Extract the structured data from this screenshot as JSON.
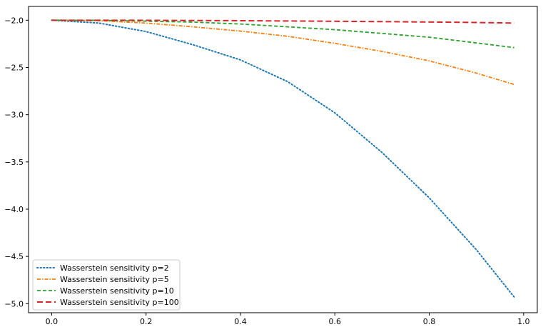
{
  "chart_data": {
    "type": "line",
    "title": "",
    "xlabel": "",
    "ylabel": "",
    "xlim": [
      -0.049,
      1.029
    ],
    "ylim": [
      -5.096,
      -1.854
    ],
    "xticks": [
      0.0,
      0.2,
      0.4,
      0.6,
      0.8,
      1.0
    ],
    "xtick_labels": [
      "0.0",
      "0.2",
      "0.4",
      "0.6",
      "0.8",
      "1.0"
    ],
    "yticks": [
      -2.0,
      -2.5,
      -3.0,
      -3.5,
      -4.0,
      -4.5,
      -5.0
    ],
    "ytick_labels": [
      "−2.0",
      "−2.5",
      "−3.0",
      "−3.5",
      "−4.0",
      "−4.5",
      "−5.0"
    ],
    "grid": false,
    "legend_position": "lower-left",
    "x": [
      0.0,
      0.1,
      0.2,
      0.3,
      0.4,
      0.5,
      0.6,
      0.7,
      0.8,
      0.9,
      0.98
    ],
    "series": [
      {
        "name": "Wasserstein sensitivity p=2",
        "color": "#1f77b4",
        "style": "dotted",
        "values": [
          -2.0,
          -2.03,
          -2.12,
          -2.26,
          -2.42,
          -2.65,
          -2.98,
          -3.4,
          -3.88,
          -4.43,
          -4.93
        ]
      },
      {
        "name": "Wasserstein sensitivity p=5",
        "color": "#ff7f0e",
        "style": "dash-dot",
        "values": [
          -2.0,
          -2.005,
          -2.03,
          -2.07,
          -2.115,
          -2.17,
          -2.245,
          -2.33,
          -2.43,
          -2.56,
          -2.68
        ]
      },
      {
        "name": "Wasserstein sensitivity p=10",
        "color": "#2ca02c",
        "style": "dashed",
        "values": [
          -2.0,
          -2.001,
          -2.01,
          -2.02,
          -2.04,
          -2.07,
          -2.1,
          -2.14,
          -2.18,
          -2.24,
          -2.29
        ]
      },
      {
        "name": "Wasserstein sensitivity p=100",
        "color": "#d62728",
        "style": "long-dash",
        "values": [
          -2.0,
          -2.0,
          -2.001,
          -2.003,
          -2.005,
          -2.008,
          -2.011,
          -2.015,
          -2.019,
          -2.024,
          -2.03
        ]
      }
    ]
  }
}
